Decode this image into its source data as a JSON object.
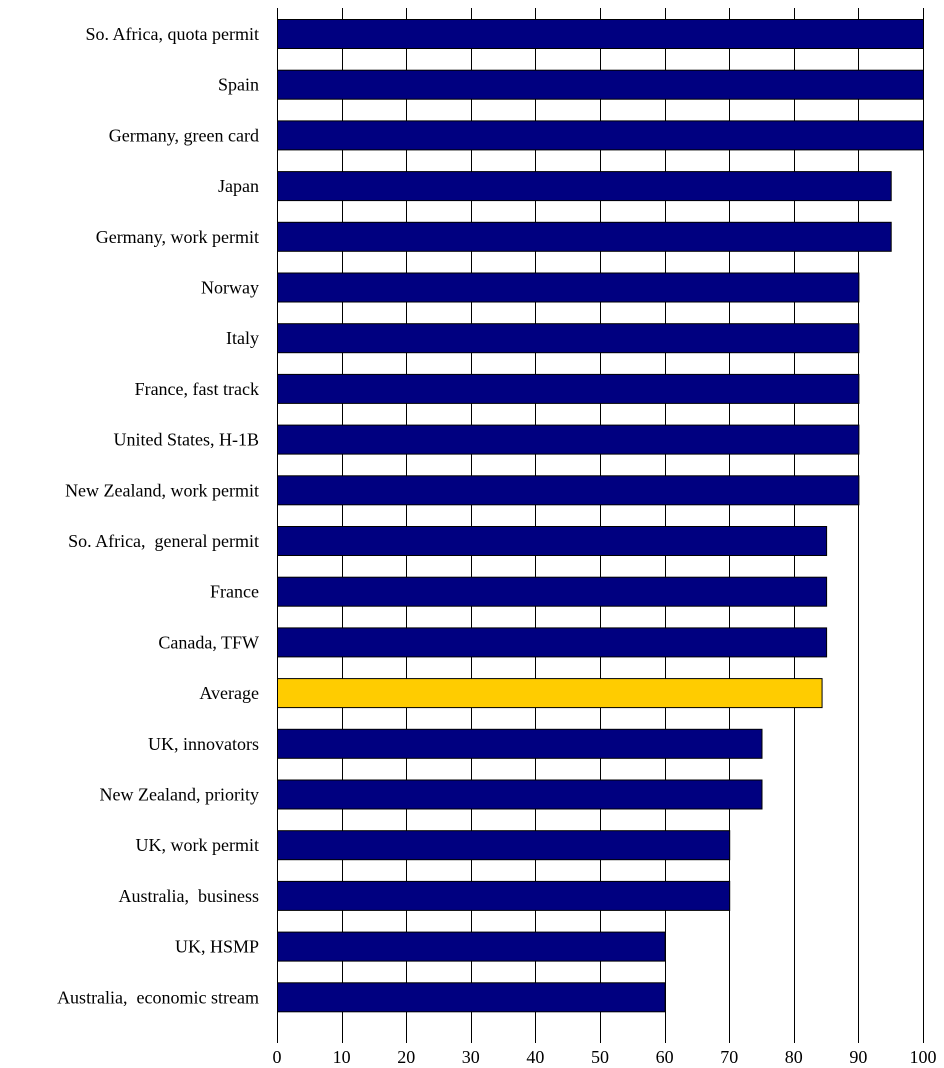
{
  "chart_data": {
    "type": "bar",
    "orientation": "horizontal",
    "title": "",
    "xlabel": "",
    "ylabel": "",
    "xlim": [
      0,
      100
    ],
    "x_ticks": [
      0,
      10,
      20,
      30,
      40,
      50,
      60,
      70,
      80,
      90,
      100
    ],
    "grid": "vertical",
    "legend": "none",
    "colors": {
      "bar": "#000080",
      "highlight": "#FFCC00"
    },
    "categories": [
      "So. Africa, quota permit",
      "Spain",
      "Germany, green card",
      "Japan",
      "Germany, work permit",
      "Norway",
      "Italy",
      "France, fast track",
      "United States, H-1B",
      "New Zealand, work permit",
      "So. Africa,  general permit",
      "France",
      "Canada, TFW",
      "Average",
      "UK, innovators",
      "New Zealand, priority",
      "UK, work permit",
      "Australia,  business",
      "UK, HSMP",
      "Australia,  economic stream"
    ],
    "values": [
      100,
      100,
      100,
      95,
      95,
      90,
      90,
      90,
      90,
      90,
      85,
      85,
      85,
      84.3,
      75,
      75,
      70,
      70,
      60,
      60
    ],
    "highlight_category": "Average"
  }
}
